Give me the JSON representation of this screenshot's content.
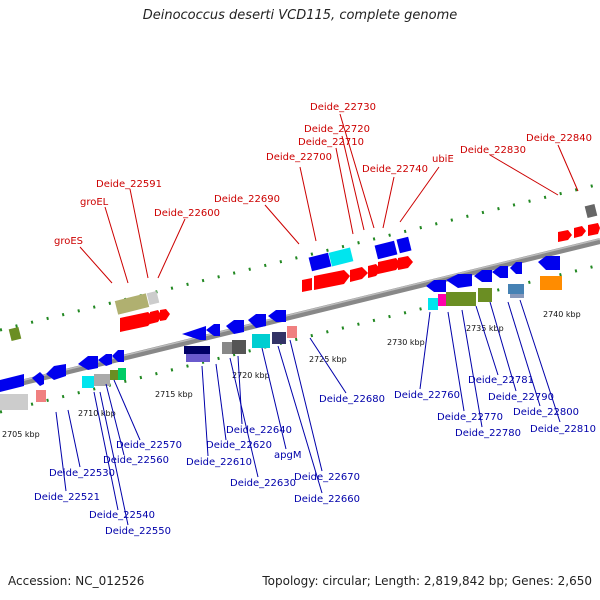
{
  "title": "Deinococcus deserti VCD115, complete genome",
  "footer": {
    "accession": "Accession: NC_012526",
    "summary": "Topology: circular; Length: 2,819,842 bp; Genes: 2,650"
  },
  "colors": {
    "upper_label": "#cc0000",
    "lower_label": "#0000aa",
    "strand_upper": "#ff0000",
    "strand_lower": "#0000ee",
    "backbone": "#888888",
    "tick": "#228822"
  },
  "kbp_labels": [
    "2705 kbp",
    "2710 kbp",
    "2715 kbp",
    "2720 kbp",
    "2725 kbp",
    "2730 kbp",
    "2735 kbp",
    "2740 kbp"
  ],
  "upper_labels": [
    "groES",
    "groEL",
    "Deide_22591",
    "Deide_22600",
    "Deide_22690",
    "Deide_22700",
    "Deide_22710",
    "Deide_22720",
    "Deide_22730",
    "Deide_22740",
    "ubiE",
    "Deide_22830",
    "Deide_22840"
  ],
  "lower_labels": [
    "Deide_22521",
    "Deide_22530",
    "Deide_22540",
    "Deide_22550",
    "Deide_22560",
    "Deide_22570",
    "Deide_22610",
    "Deide_22620",
    "Deide_22630",
    "Deide_22640",
    "apgM",
    "Deide_22660",
    "Deide_22670",
    "Deide_22680",
    "Deide_22760",
    "Deide_22770",
    "Deide_22780",
    "Deide_22781",
    "Deide_22790",
    "Deide_22800",
    "Deide_22810"
  ]
}
